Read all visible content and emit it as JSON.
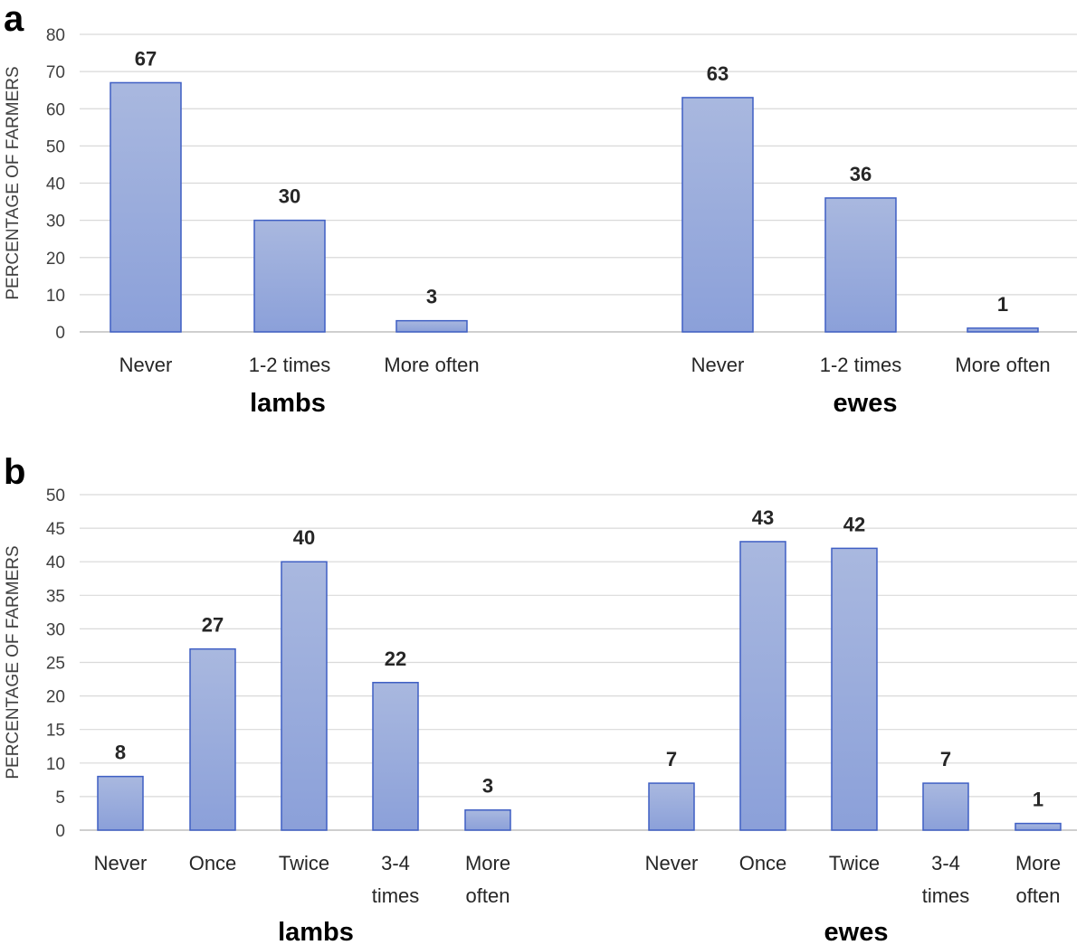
{
  "colors": {
    "bar_top": "#a9b8df",
    "bar_bottom": "#8ba0d9",
    "bar_border": "#3f5fc4"
  },
  "chart_data": [
    {
      "panel": "a",
      "type": "bar",
      "ylabel": "PERCENTAGE OF FARMERS",
      "ylim": [
        0,
        80
      ],
      "yticks": [
        0,
        10,
        20,
        30,
        40,
        50,
        60,
        70,
        80
      ],
      "grid": true,
      "groups": [
        {
          "name": "lambs",
          "categories": [
            "Never",
            "1-2 times",
            "More often"
          ],
          "values": [
            67,
            30,
            3
          ]
        },
        {
          "name": "ewes",
          "categories": [
            "Never",
            "1-2 times",
            "More often"
          ],
          "values": [
            63,
            36,
            1
          ]
        }
      ]
    },
    {
      "panel": "b",
      "type": "bar",
      "ylabel": "PERCENTAGE OF FARMERS",
      "ylim": [
        0,
        50
      ],
      "yticks": [
        0,
        5,
        10,
        15,
        20,
        25,
        30,
        35,
        40,
        45,
        50
      ],
      "grid": true,
      "groups": [
        {
          "name": "lambs",
          "categories": [
            "Never",
            "Once",
            "Twice",
            "3-4 times",
            "More often"
          ],
          "values": [
            8,
            27,
            40,
            22,
            3
          ]
        },
        {
          "name": "ewes",
          "categories": [
            "Never",
            "Once",
            "Twice",
            "3-4 times",
            "More often"
          ],
          "values": [
            7,
            43,
            42,
            7,
            1
          ]
        }
      ]
    }
  ]
}
